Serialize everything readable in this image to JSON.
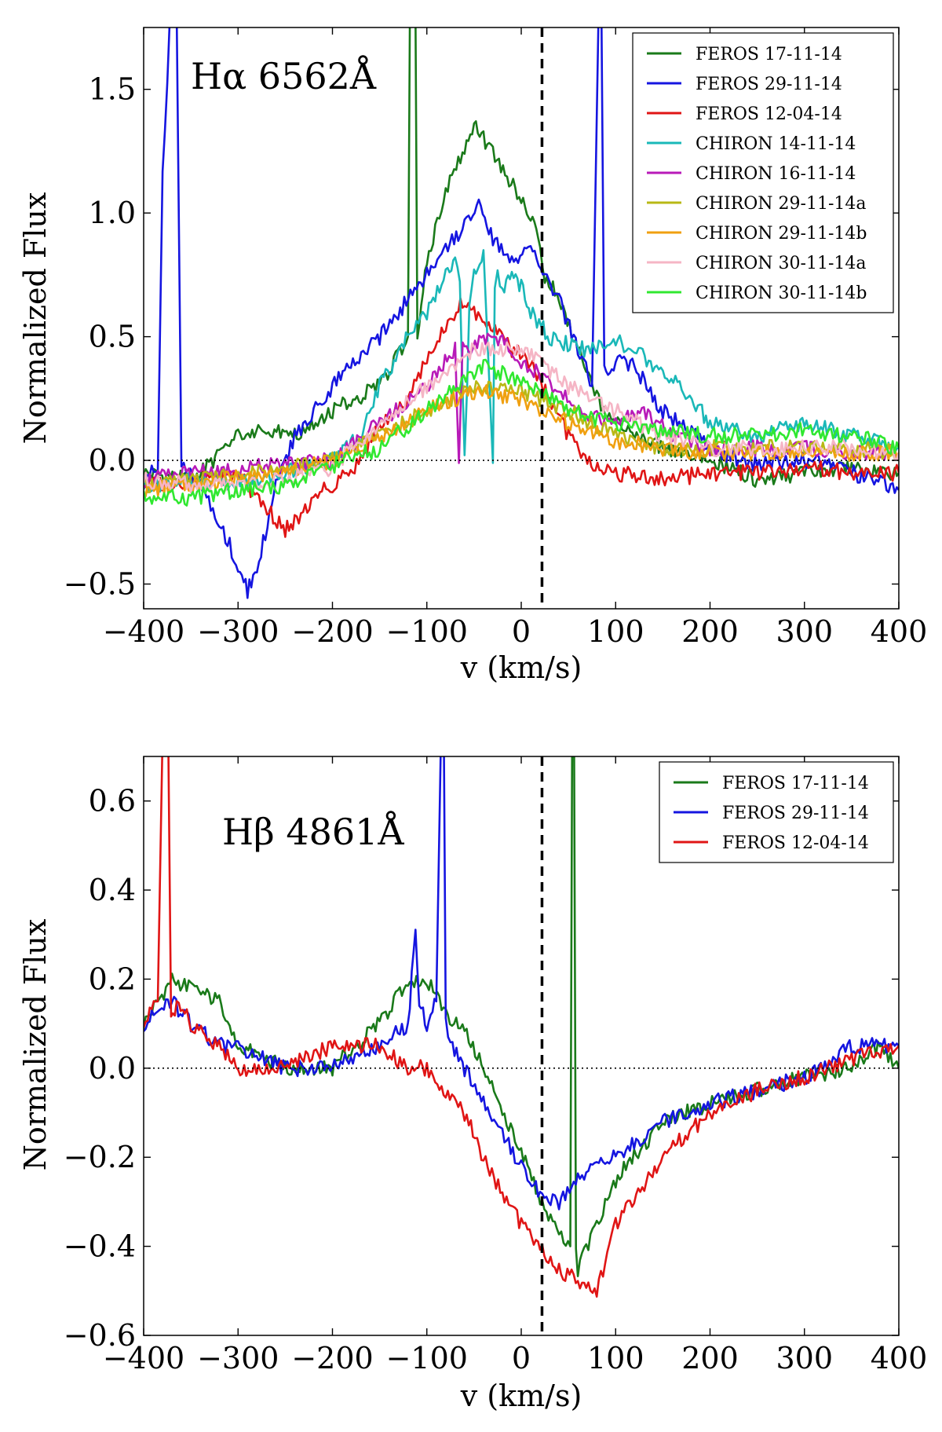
{
  "chart_data": [
    {
      "type": "line",
      "annotation": "Hα 6562Å",
      "xlabel": "v (km/s)",
      "ylabel": "Normalized Flux",
      "xlim": [
        -400,
        400
      ],
      "ylim": [
        -0.6,
        1.75
      ],
      "xticks": [
        -400,
        -300,
        -200,
        -100,
        0,
        100,
        200,
        300,
        400
      ],
      "xtick_labels": [
        "−400",
        "−300",
        "−200",
        "−100",
        "0",
        "100",
        "200",
        "300",
        "400"
      ],
      "yticks": [
        -0.5,
        0.0,
        0.5,
        1.0,
        1.5
      ],
      "ytick_labels": [
        "−0.5",
        "0.0",
        "0.5",
        "1.0",
        "1.5"
      ],
      "vline_x": 22,
      "hline_y": 0,
      "legend_position": "top-right",
      "series": [
        {
          "name": "FEROS 17-11-14",
          "color": "#1a7a1a",
          "x": [
            -400,
            -350,
            -320,
            -300,
            -270,
            -240,
            -200,
            -150,
            -120,
            -118,
            -115,
            -112,
            -110,
            -100,
            -80,
            -60,
            -50,
            -40,
            -30,
            -15,
            0,
            10,
            20,
            25,
            40,
            60,
            80,
            100,
            120,
            150,
            200,
            250,
            300,
            350,
            400
          ],
          "values": [
            -0.05,
            -0.08,
            0.02,
            0.1,
            0.12,
            0.1,
            0.2,
            0.3,
            0.5,
            1.8,
            1.8,
            1.8,
            0.5,
            0.8,
            1.1,
            1.25,
            1.35,
            1.3,
            1.25,
            1.15,
            1.05,
            1.0,
            0.85,
            0.75,
            0.65,
            0.45,
            0.25,
            0.15,
            0.1,
            0.05,
            0.0,
            -0.08,
            -0.05,
            -0.03,
            -0.05
          ]
        },
        {
          "name": "FEROS 29-11-14",
          "color": "#1515e0",
          "x": [
            -400,
            -385,
            -380,
            -375,
            -372,
            -368,
            -365,
            -360,
            -355,
            -340,
            -320,
            -300,
            -290,
            -280,
            -260,
            -240,
            -200,
            -150,
            -100,
            -80,
            -60,
            -45,
            -30,
            -10,
            10,
            25,
            40,
            60,
            75,
            82,
            85,
            88,
            92,
            100,
            120,
            150,
            200,
            250,
            300,
            350,
            400
          ],
          "values": [
            -0.05,
            -0.05,
            1.2,
            1.5,
            1.8,
            1.8,
            1.8,
            0.0,
            -0.05,
            -0.1,
            -0.25,
            -0.42,
            -0.53,
            -0.45,
            -0.1,
            0.1,
            0.3,
            0.5,
            0.75,
            0.85,
            0.95,
            1.05,
            0.9,
            0.8,
            0.85,
            0.75,
            0.65,
            0.45,
            0.3,
            1.8,
            1.8,
            0.4,
            0.35,
            0.4,
            0.38,
            0.2,
            0.05,
            -0.02,
            0.0,
            -0.05,
            -0.12
          ]
        },
        {
          "name": "FEROS 12-04-14",
          "color": "#e01515",
          "x": [
            -400,
            -350,
            -300,
            -280,
            -250,
            -240,
            -220,
            -200,
            -170,
            -150,
            -120,
            -100,
            -80,
            -60,
            -50,
            -30,
            -10,
            10,
            30,
            50,
            70,
            100,
            150,
            200,
            250,
            300,
            350,
            400
          ],
          "values": [
            -0.1,
            -0.08,
            -0.05,
            -0.15,
            -0.28,
            -0.25,
            -0.15,
            -0.1,
            0.0,
            0.15,
            0.25,
            0.4,
            0.55,
            0.65,
            0.6,
            0.55,
            0.45,
            0.4,
            0.25,
            0.1,
            0.0,
            -0.05,
            -0.08,
            -0.05,
            -0.05,
            -0.03,
            -0.05,
            -0.05
          ]
        },
        {
          "name": "CHIRON 14-11-14",
          "color": "#1ab8b8",
          "x": [
            -400,
            -350,
            -300,
            -250,
            -200,
            -170,
            -150,
            -120,
            -100,
            -80,
            -70,
            -65,
            -60,
            -55,
            -50,
            -40,
            -30,
            -28,
            -25,
            -20,
            -10,
            0,
            10,
            30,
            60,
            80,
            100,
            120,
            150,
            170,
            200,
            250,
            300,
            350,
            400
          ],
          "values": [
            -0.1,
            -0.08,
            -0.1,
            -0.05,
            0.0,
            0.1,
            0.3,
            0.5,
            0.6,
            0.75,
            0.8,
            0.7,
            0.0,
            0.6,
            0.75,
            0.85,
            0.0,
            0.7,
            0.75,
            0.7,
            0.75,
            0.7,
            0.6,
            0.5,
            0.45,
            0.45,
            0.48,
            0.45,
            0.35,
            0.3,
            0.15,
            0.1,
            0.15,
            0.1,
            0.05
          ]
        },
        {
          "name": "CHIRON 16-11-14",
          "color": "#b81ab8",
          "x": [
            -400,
            -350,
            -300,
            -250,
            -200,
            -150,
            -100,
            -70,
            -66,
            -62,
            -58,
            -40,
            -20,
            0,
            20,
            60,
            100,
            130,
            160,
            200,
            250,
            300,
            350,
            400
          ],
          "values": [
            -0.08,
            -0.05,
            -0.03,
            -0.02,
            0.0,
            0.15,
            0.3,
            0.45,
            0.0,
            0.45,
            0.45,
            0.5,
            0.48,
            0.4,
            0.35,
            0.2,
            0.15,
            0.2,
            0.1,
            0.05,
            0.05,
            0.05,
            0.03,
            0.03
          ]
        },
        {
          "name": "CHIRON 29-11-14a",
          "color": "#b8b815",
          "x": [
            -400,
            -350,
            -300,
            -250,
            -200,
            -150,
            -100,
            -50,
            0,
            50,
            100,
            150,
            200,
            250,
            300,
            350,
            400
          ],
          "values": [
            -0.1,
            -0.08,
            -0.05,
            -0.03,
            0.0,
            0.1,
            0.2,
            0.3,
            0.28,
            0.2,
            0.1,
            0.05,
            0.05,
            0.05,
            0.05,
            0.05,
            0.03
          ]
        },
        {
          "name": "CHIRON 29-11-14b",
          "color": "#f0a010",
          "x": [
            -400,
            -350,
            -300,
            -250,
            -200,
            -150,
            -100,
            -50,
            0,
            50,
            100,
            150,
            200,
            250,
            300,
            350,
            400
          ],
          "values": [
            -0.12,
            -0.1,
            -0.07,
            -0.05,
            0.0,
            0.1,
            0.2,
            0.28,
            0.25,
            0.15,
            0.08,
            0.05,
            0.03,
            0.03,
            0.03,
            0.03,
            0.03
          ]
        },
        {
          "name": "CHIRON 30-11-14a",
          "color": "#f5b5c5",
          "x": [
            -400,
            -350,
            -300,
            -250,
            -200,
            -150,
            -100,
            -50,
            0,
            50,
            100,
            150,
            200,
            250,
            300,
            350,
            400
          ],
          "values": [
            -0.08,
            -0.1,
            -0.1,
            -0.08,
            -0.03,
            0.15,
            0.3,
            0.45,
            0.45,
            0.3,
            0.2,
            0.1,
            0.05,
            0.05,
            0.05,
            0.05,
            0.03
          ]
        },
        {
          "name": "CHIRON 30-11-14b",
          "color": "#30e830",
          "x": [
            -400,
            -350,
            -300,
            -250,
            -200,
            -150,
            -100,
            -50,
            -40,
            0,
            50,
            100,
            150,
            200,
            250,
            300,
            350,
            400
          ],
          "values": [
            -0.15,
            -0.15,
            -0.12,
            -0.1,
            -0.02,
            0.05,
            0.2,
            0.35,
            0.38,
            0.32,
            0.2,
            0.15,
            0.12,
            0.1,
            0.1,
            0.12,
            0.1,
            0.05
          ]
        }
      ]
    },
    {
      "type": "line",
      "annotation": "Hβ 4861Å",
      "xlabel": "v (km/s)",
      "ylabel": "Normalized Flux",
      "xlim": [
        -400,
        400
      ],
      "ylim": [
        -0.6,
        0.7
      ],
      "xticks": [
        -400,
        -300,
        -200,
        -100,
        0,
        100,
        200,
        300,
        400
      ],
      "xtick_labels": [
        "−400",
        "−300",
        "−200",
        "−100",
        "0",
        "100",
        "200",
        "300",
        "400"
      ],
      "yticks": [
        -0.6,
        -0.4,
        -0.2,
        0.0,
        0.2,
        0.4,
        0.6
      ],
      "ytick_labels": [
        "−0.6",
        "−0.4",
        "−0.2",
        "0.0",
        "0.2",
        "0.4",
        "0.6"
      ],
      "vline_x": 22,
      "hline_y": 0,
      "legend_position": "top-right",
      "series": [
        {
          "name": "FEROS 17-11-14",
          "color": "#1a7a1a",
          "x": [
            -400,
            -370,
            -350,
            -320,
            -300,
            -250,
            -200,
            -150,
            -120,
            -100,
            -80,
            -60,
            -40,
            -20,
            0,
            20,
            40,
            52,
            54,
            56,
            58,
            60,
            80,
            100,
            150,
            200,
            250,
            300,
            350,
            380,
            400
          ],
          "values": [
            0.1,
            0.2,
            0.18,
            0.15,
            0.05,
            0.0,
            0.0,
            0.1,
            0.2,
            0.2,
            0.12,
            0.08,
            0.0,
            -0.1,
            -0.18,
            -0.3,
            -0.38,
            -0.4,
            0.75,
            0.75,
            -0.4,
            -0.45,
            -0.35,
            -0.25,
            -0.12,
            -0.08,
            -0.05,
            -0.02,
            0.0,
            0.05,
            0.0
          ]
        },
        {
          "name": "FEROS 29-11-14",
          "color": "#1515e0",
          "x": [
            -400,
            -370,
            -350,
            -320,
            -300,
            -250,
            -200,
            -150,
            -120,
            -112,
            -108,
            -100,
            -90,
            -85,
            -82,
            -80,
            -75,
            -60,
            -40,
            -20,
            0,
            20,
            40,
            60,
            80,
            100,
            150,
            200,
            250,
            300,
            350,
            400
          ],
          "values": [
            0.1,
            0.15,
            0.1,
            0.05,
            0.05,
            0.0,
            0.0,
            0.05,
            0.1,
            0.3,
            0.15,
            0.1,
            0.15,
            0.75,
            0.75,
            0.1,
            0.05,
            0.0,
            -0.08,
            -0.15,
            -0.22,
            -0.28,
            -0.3,
            -0.25,
            -0.22,
            -0.2,
            -0.12,
            -0.08,
            -0.05,
            -0.02,
            0.05,
            0.05
          ]
        },
        {
          "name": "FEROS 12-04-14",
          "color": "#e01515",
          "x": [
            -400,
            -385,
            -380,
            -377,
            -374,
            -371,
            -365,
            -350,
            -320,
            -300,
            -250,
            -200,
            -150,
            -120,
            -100,
            -80,
            -60,
            -40,
            -20,
            0,
            20,
            40,
            60,
            80,
            100,
            150,
            200,
            250,
            300,
            350,
            400
          ],
          "values": [
            0.1,
            0.15,
            0.75,
            0.75,
            0.75,
            0.1,
            0.15,
            0.1,
            0.05,
            0.0,
            0.0,
            0.05,
            0.05,
            0.0,
            0.0,
            -0.05,
            -0.1,
            -0.2,
            -0.28,
            -0.35,
            -0.4,
            -0.45,
            -0.48,
            -0.5,
            -0.35,
            -0.2,
            -0.1,
            -0.05,
            -0.02,
            0.02,
            0.05
          ]
        }
      ]
    }
  ]
}
